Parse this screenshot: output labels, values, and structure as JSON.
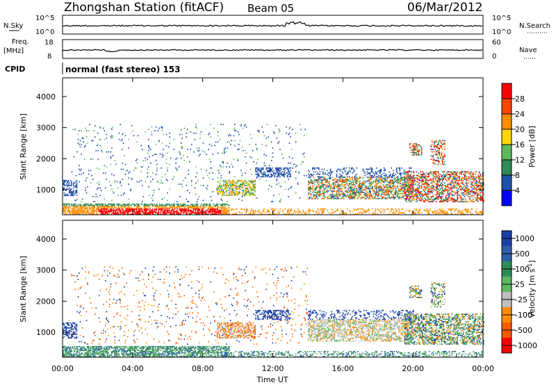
{
  "header": {
    "station": "Zhongshan Station (fitACF)",
    "beam": "Beam 05",
    "date": "06/Mar/2012"
  },
  "strip1": {
    "left_label": "N.Sky",
    "right_label": "N.Search",
    "left_ticks": [
      "10^5",
      "10^0"
    ],
    "right_ticks": [
      "10^5",
      "10^0"
    ]
  },
  "strip2": {
    "left_label_top": "Freq.",
    "left_label_bottom": "[MHz]",
    "right_label": "Nave",
    "left_ticks": [
      "18",
      "8"
    ],
    "right_ticks": [
      "60",
      "0"
    ]
  },
  "cpid": {
    "label": "CPID",
    "mode_text": "normal (fast stereo) 153"
  },
  "colors": {
    "power": [
      "#0000ff",
      "#1f4fa8",
      "#2e8b57",
      "#5fb85f",
      "#ffd700",
      "#ff8c00",
      "#ff4500",
      "#ff0000"
    ],
    "velocity": [
      "#1a3fa8",
      "#2f5faa",
      "#2e8b57",
      "#5fb85f",
      "#bfbfbf",
      "#ff8c00",
      "#ff5a00",
      "#ff0000"
    ]
  },
  "chart_data": [
    {
      "type": "heatmap",
      "name": "power",
      "ylabel": "Slant Range [km]",
      "y_ticks": [
        "1000",
        "2000",
        "3000",
        "4000"
      ],
      "ylim": [
        200,
        4600
      ],
      "colorbar_label": "Power [dB]",
      "colorbar_ticks": [
        "4",
        "8",
        "12",
        "16",
        "20",
        "24",
        "28"
      ],
      "colorbar_range": [
        0,
        32
      ]
    },
    {
      "type": "heatmap",
      "name": "velocity",
      "ylabel": "Slant Range [km]",
      "y_ticks": [
        "1000",
        "2000",
        "3000",
        "4000"
      ],
      "ylim": [
        200,
        4600
      ],
      "colorbar_label": "Velocity [m s",
      "colorbar_label_sup": "-1",
      "colorbar_label_end": "]",
      "colorbar_ticks": [
        "1000",
        "500",
        "100",
        "25",
        "-25",
        "-100",
        "-500",
        "-1000"
      ]
    }
  ],
  "time_axis": {
    "label": "Time UT",
    "ticks": [
      "00:00",
      "04:00",
      "08:00",
      "12:00",
      "16:00",
      "20:00",
      "00:00"
    ],
    "xlim_hours": [
      0,
      24
    ]
  }
}
